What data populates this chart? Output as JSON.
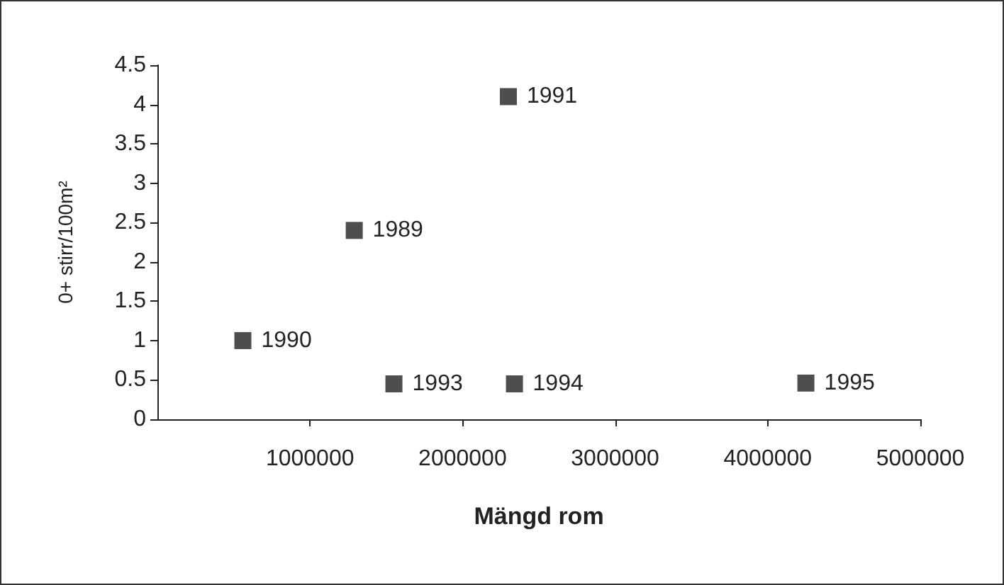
{
  "chart_data": {
    "type": "scatter",
    "xlabel": "Mängd rom",
    "ylabel": "0+ stirr/100m²",
    "x": [
      1290000,
      560000,
      2300000,
      1550000,
      2340000,
      4250000
    ],
    "values": [
      2.4,
      1.0,
      4.1,
      0.45,
      0.45,
      0.46
    ],
    "color": "#222222",
    "marker": "square",
    "grid": false,
    "xlim": [
      0,
      5000000
    ],
    "xticks": [
      1000000,
      2000000,
      3000000,
      4000000,
      5000000
    ],
    "ylim": [
      0,
      4.5
    ],
    "yticks": [
      0,
      0.5,
      1,
      1.5,
      2,
      2.5,
      3,
      3.5,
      4,
      4.5
    ],
    "annotations": [
      {
        "text": "1989",
        "x": 1290000,
        "y": 2.4
      },
      {
        "text": "1990",
        "x": 560000,
        "y": 1.0
      },
      {
        "text": "1991",
        "x": 2300000,
        "y": 4.1
      },
      {
        "text": "1993",
        "x": 1550000,
        "y": 0.45
      },
      {
        "text": "1994",
        "x": 2340000,
        "y": 0.45
      },
      {
        "text": "1995",
        "x": 4250000,
        "y": 0.46
      }
    ]
  }
}
